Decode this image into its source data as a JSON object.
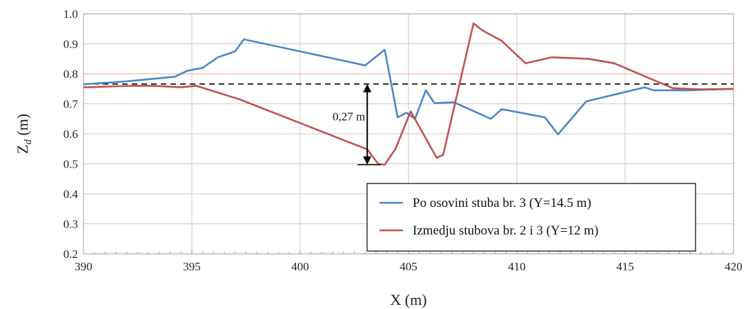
{
  "chart_data": {
    "type": "line",
    "xlabel": "X (m)",
    "ylabel_main": "Z",
    "ylabel_sub": "d",
    "ylabel_unit": " (m)",
    "xlim": [
      390,
      420
    ],
    "ylim": [
      0.2,
      1.0
    ],
    "x_ticks": [
      "390",
      "395",
      "400",
      "405",
      "410",
      "415",
      "420"
    ],
    "y_ticks": [
      "0.2",
      "0.3",
      "0.4",
      "0.5",
      "0.6",
      "0.7",
      "0.8",
      "0.9",
      "1.0"
    ],
    "grid": true,
    "legend_position": "bottom-right",
    "reference_line": {
      "y": 0.766,
      "style": "dashed",
      "color": "#000000"
    },
    "light_reference_line": {
      "y": 0.8,
      "color": "#f2b8a8"
    },
    "annotation": {
      "text": "0,27 m",
      "x": 403,
      "y_top": 0.766,
      "y_bottom": 0.497
    },
    "series": [
      {
        "name": "Po osovini stuba br. 3 (Y=14.5 m)",
        "color": "#4a86c5",
        "points": [
          [
            390,
            0.765
          ],
          [
            392,
            0.775
          ],
          [
            394.2,
            0.79
          ],
          [
            394.8,
            0.81
          ],
          [
            395.5,
            0.82
          ],
          [
            396.2,
            0.855
          ],
          [
            397,
            0.875
          ],
          [
            397.4,
            0.915
          ],
          [
            403,
            0.828
          ],
          [
            403.9,
            0.88
          ],
          [
            404.5,
            0.655
          ],
          [
            404.9,
            0.67
          ],
          [
            405.3,
            0.65
          ],
          [
            405.8,
            0.745
          ],
          [
            406.2,
            0.702
          ],
          [
            407.1,
            0.705
          ],
          [
            408.8,
            0.65
          ],
          [
            409.3,
            0.682
          ],
          [
            411.3,
            0.655
          ],
          [
            411.9,
            0.598
          ],
          [
            413.2,
            0.708
          ],
          [
            415.9,
            0.755
          ],
          [
            416.3,
            0.745
          ],
          [
            418,
            0.745
          ],
          [
            420,
            0.75
          ]
        ]
      },
      {
        "name": "Izmedju stubova br. 2 i 3 (Y=12 m)",
        "color": "#c0504d",
        "points": [
          [
            390,
            0.755
          ],
          [
            392.2,
            0.76
          ],
          [
            393.2,
            0.76
          ],
          [
            394.5,
            0.755
          ],
          [
            395.2,
            0.76
          ],
          [
            397.2,
            0.715
          ],
          [
            403.1,
            0.548
          ],
          [
            403.6,
            0.5
          ],
          [
            403.9,
            0.497
          ],
          [
            404.4,
            0.55
          ],
          [
            405.1,
            0.675
          ],
          [
            406.3,
            0.52
          ],
          [
            406.6,
            0.53
          ],
          [
            408,
            0.968
          ],
          [
            408.4,
            0.945
          ],
          [
            409.3,
            0.91
          ],
          [
            410.4,
            0.835
          ],
          [
            411.6,
            0.855
          ],
          [
            413.3,
            0.85
          ],
          [
            414.5,
            0.835
          ],
          [
            417.2,
            0.752
          ],
          [
            418.5,
            0.748
          ],
          [
            420,
            0.75
          ]
        ]
      }
    ]
  }
}
